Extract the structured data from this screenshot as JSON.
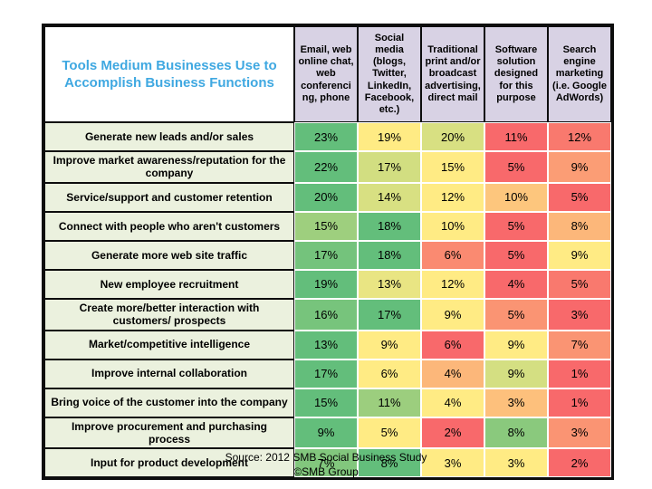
{
  "slide": {
    "footer_line1": "Source: 2012 SMB Social Business Study",
    "footer_line2": "©SMB Group"
  },
  "colors": {
    "title_text": "#3FA8E1",
    "header_bg": "#D8D2E4",
    "label_bg": "#EBF1DE",
    "table_border": "#0D0D0D",
    "gridline": "#FFFFFF",
    "scale_min_red": "#F8696B",
    "scale_mid_yellow": "#FFEB84",
    "scale_max_green": "#63BE7B"
  },
  "chart_data": {
    "type": "heatmap",
    "title": "Tools Medium Businesses Use to Accomplish Business Functions",
    "unit": "%",
    "columns": [
      "Email, web online chat, web conferencing, phone",
      "Social media (blogs, Twitter, LinkedIn, Facebook, etc.)",
      "Traditional print and/or broadcast advertising, direct mail",
      "Software solution designed for this purpose",
      "Search engine marketing (i.e. Google AdWords)"
    ],
    "rows": [
      {
        "label": "Generate new leads and/or sales",
        "values": [
          23,
          19,
          20,
          11,
          12
        ]
      },
      {
        "label": "Improve market awareness/reputation for the company",
        "values": [
          22,
          17,
          15,
          5,
          9
        ]
      },
      {
        "label": "Service/support and customer retention",
        "values": [
          20,
          14,
          12,
          10,
          5
        ]
      },
      {
        "label": "Connect with people who aren't customers",
        "values": [
          15,
          18,
          10,
          5,
          8
        ]
      },
      {
        "label": "Generate more web site traffic",
        "values": [
          17,
          18,
          6,
          5,
          9
        ]
      },
      {
        "label": "New employee recruitment",
        "values": [
          19,
          13,
          12,
          4,
          5
        ]
      },
      {
        "label": "Create more/better interaction with customers/ prospects",
        "values": [
          16,
          17,
          9,
          5,
          3
        ]
      },
      {
        "label": "Market/competitive intelligence",
        "values": [
          13,
          9,
          6,
          9,
          7
        ]
      },
      {
        "label": "Improve internal collaboration",
        "values": [
          17,
          6,
          4,
          9,
          1
        ]
      },
      {
        "label": "Bring voice of the customer into the company",
        "values": [
          15,
          11,
          4,
          3,
          1
        ]
      },
      {
        "label": "Improve procurement and purchasing process",
        "values": [
          9,
          5,
          2,
          8,
          3
        ]
      },
      {
        "label": "Input for product development",
        "values": [
          7,
          8,
          3,
          3,
          2
        ]
      }
    ],
    "legend_position": "none",
    "grid": "white gridlines between value cells",
    "color_scale": {
      "applied_per": "row",
      "min_color": "#F8696B",
      "midpoint_50th_percentile_color": "#FFEB84",
      "max_color": "#63BE7B"
    }
  }
}
